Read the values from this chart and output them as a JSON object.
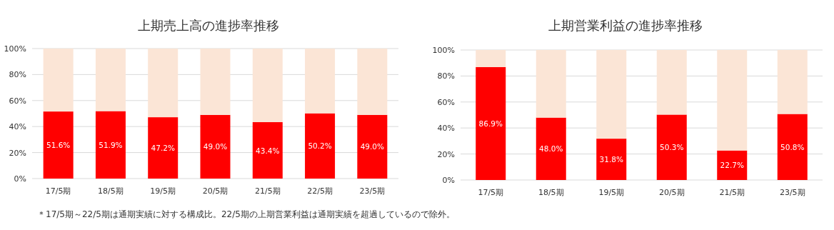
{
  "chart_data": [
    {
      "type": "bar",
      "stacked": true,
      "title": "上期売上高の進捗率推移",
      "grid": "y",
      "categories": [
        "17/5期",
        "18/5期",
        "19/5期",
        "20/5期",
        "21/5期",
        "22/5期",
        "23/5期"
      ],
      "series": [
        {
          "color": "#ff0000",
          "values": [
            51.6,
            51.9,
            47.2,
            49.0,
            43.4,
            50.2,
            49.0
          ],
          "value_labels": [
            "51.6%",
            "51.9%",
            "47.2%",
            "49.0%",
            "43.4%",
            "50.2%",
            "49.0%"
          ]
        },
        {
          "color": "#fbe5d6",
          "values": [
            48.4,
            48.1,
            52.8,
            51.0,
            56.6,
            49.8,
            51.0
          ]
        }
      ],
      "ylim": [
        0,
        100
      ],
      "yticks": [
        {
          "value": 0,
          "label": "0%"
        },
        {
          "value": 20,
          "label": "20%"
        },
        {
          "value": 40,
          "label": "40%"
        },
        {
          "value": 60,
          "label": "60%"
        },
        {
          "value": 80,
          "label": "80%"
        },
        {
          "value": 100,
          "label": "100%"
        }
      ],
      "annotations": [
        "＊17/5期～22/5期は通期実績に対する構成比。22/5期の上期営業利益は通期実績を超過しているので除外。"
      ]
    },
    {
      "type": "bar",
      "stacked": true,
      "title": "上期営業利益の進捗率推移",
      "grid": "y",
      "categories": [
        "17/5期",
        "18/5期",
        "19/5期",
        "20/5期",
        "21/5期",
        "23/5期"
      ],
      "series": [
        {
          "color": "#ff0000",
          "values": [
            86.9,
            48.0,
            31.8,
            50.3,
            22.7,
            50.8
          ],
          "value_labels": [
            "86.9%",
            "48.0%",
            "31.8%",
            "50.3%",
            "22.7%",
            "50.8%"
          ]
        },
        {
          "color": "#fbe5d6",
          "values": [
            13.1,
            52.0,
            68.2,
            49.7,
            77.3,
            49.2
          ]
        }
      ],
      "ylim": [
        0,
        100
      ],
      "yticks": [
        {
          "value": 0,
          "label": "0%"
        },
        {
          "value": 20,
          "label": "20%"
        },
        {
          "value": 40,
          "label": "40%"
        },
        {
          "value": 60,
          "label": "60%"
        },
        {
          "value": 80,
          "label": "80%"
        },
        {
          "value": 100,
          "label": "100%"
        }
      ]
    }
  ]
}
